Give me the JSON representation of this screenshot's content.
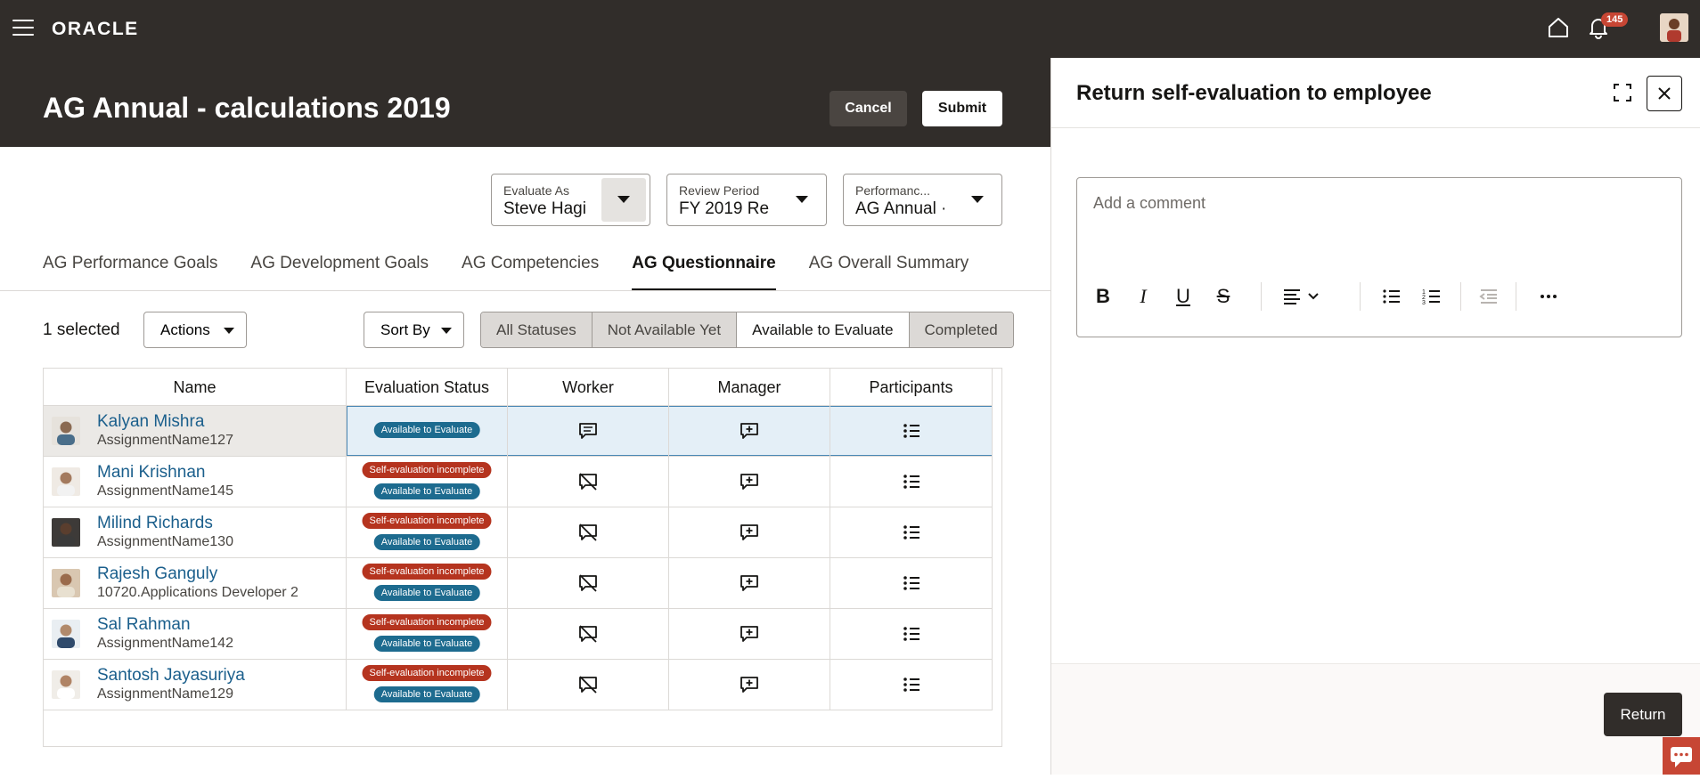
{
  "app": {
    "brand": "ORACLE",
    "notification_count": "145"
  },
  "header": {
    "title": "AG Annual - calculations 2019",
    "cancel_label": "Cancel",
    "submit_label": "Submit"
  },
  "filters": {
    "evaluate_as": {
      "label": "Evaluate As",
      "value": "Steve Hagi"
    },
    "review_period": {
      "label": "Review Period",
      "value": "FY 2019 Re"
    },
    "performance": {
      "label": "Performanc...",
      "value": "AG Annual ·"
    }
  },
  "tabs": [
    {
      "label": "AG Performance Goals"
    },
    {
      "label": "AG Development Goals"
    },
    {
      "label": "AG Competencies"
    },
    {
      "label": "AG Questionnaire",
      "active": true
    },
    {
      "label": "AG Overall Summary"
    }
  ],
  "toolbar": {
    "selected": "1 selected",
    "actions_label": "Actions",
    "sort_label": "Sort By",
    "statuses": [
      "All Statuses",
      "Not Available Yet",
      "Available to Evaluate",
      "Completed"
    ],
    "active_status": "Available to Evaluate"
  },
  "table": {
    "columns": [
      "Name",
      "Evaluation Status",
      "Worker",
      "Manager",
      "Participants"
    ],
    "rows": [
      {
        "name": "Kalyan Mishra",
        "sub": "AssignmentName127",
        "statuses": [
          "Available to Evaluate"
        ],
        "worker_icon": "comment-icon"
      },
      {
        "name": "Mani Krishnan",
        "sub": "AssignmentName145",
        "statuses": [
          "Self-evaluation incomplete",
          "Available to Evaluate"
        ],
        "worker_icon": "comment-off-icon"
      },
      {
        "name": "Milind Richards",
        "sub": "AssignmentName130",
        "statuses": [
          "Self-evaluation incomplete",
          "Available to Evaluate"
        ],
        "worker_icon": "comment-off-icon"
      },
      {
        "name": "Rajesh Ganguly",
        "sub": "10720.Applications Developer 2",
        "statuses": [
          "Self-evaluation incomplete",
          "Available to Evaluate"
        ],
        "worker_icon": "comment-off-icon"
      },
      {
        "name": "Sal Rahman",
        "sub": "AssignmentName142",
        "statuses": [
          "Self-evaluation incomplete",
          "Available to Evaluate"
        ],
        "worker_icon": "comment-off-icon"
      },
      {
        "name": "Santosh Jayasuriya",
        "sub": "AssignmentName129",
        "statuses": [
          "Self-evaluation incomplete",
          "Available to Evaluate"
        ],
        "worker_icon": "comment-off-icon"
      }
    ]
  },
  "panel": {
    "title": "Return self-evaluation to employee",
    "comment_placeholder": "Add a comment",
    "return_label": "Return"
  },
  "colors": {
    "header_bg": "#312d2a",
    "link": "#1b5f8c",
    "status_blue": "#1d6b8f",
    "status_red": "#b5341f",
    "badge": "#c74634"
  }
}
